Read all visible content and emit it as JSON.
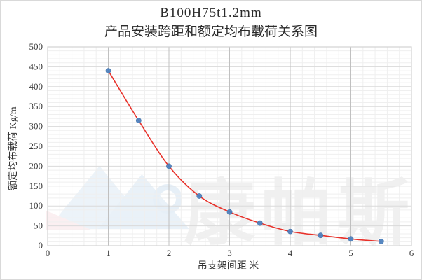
{
  "title": {
    "line1": "B100H75t1.2mm",
    "line2": "产品安装跨距和额定均布载荷关系图"
  },
  "axes": {
    "y_title": "额定均布载荷  Kg/m",
    "x_title": "吊支架间距  米"
  },
  "watermark": {
    "text": "康帕斯",
    "logo": "mountain-peaks-with-ring"
  },
  "colors": {
    "point": "#4e82bf",
    "point_edge": "#3f6ea6",
    "curve": "#e8312a",
    "grid_minor": "#efefef",
    "grid_major_h": "#dadada",
    "grid_major_v": "#c0c0c0",
    "plot_border": "#d2d2d2",
    "tick_text": "#3c3c3c"
  },
  "chart_data": {
    "type": "scatter",
    "title": "B100H75t1.2mm 产品安装跨距和额定均布载荷关系图",
    "xlabel": "吊支架间距 米",
    "ylabel": "额定均布载荷 Kg/m",
    "x": [
      1,
      1.5,
      2,
      2.5,
      3,
      3.5,
      4,
      4.5,
      5,
      5.5
    ],
    "y": [
      440,
      315,
      200,
      125,
      85,
      57,
      36,
      26,
      17,
      11
    ],
    "trendline": "smooth red curve through points",
    "xlim": [
      0,
      6
    ],
    "ylim": [
      0,
      500
    ],
    "x_ticks": [
      0,
      1,
      2,
      3,
      4,
      5,
      6
    ],
    "y_ticks": [
      0,
      50,
      100,
      150,
      200,
      250,
      300,
      350,
      400,
      450,
      500
    ],
    "x_minor_step": 0.2,
    "y_minor_step": 10,
    "grid": "major+minor",
    "legend": "none"
  }
}
